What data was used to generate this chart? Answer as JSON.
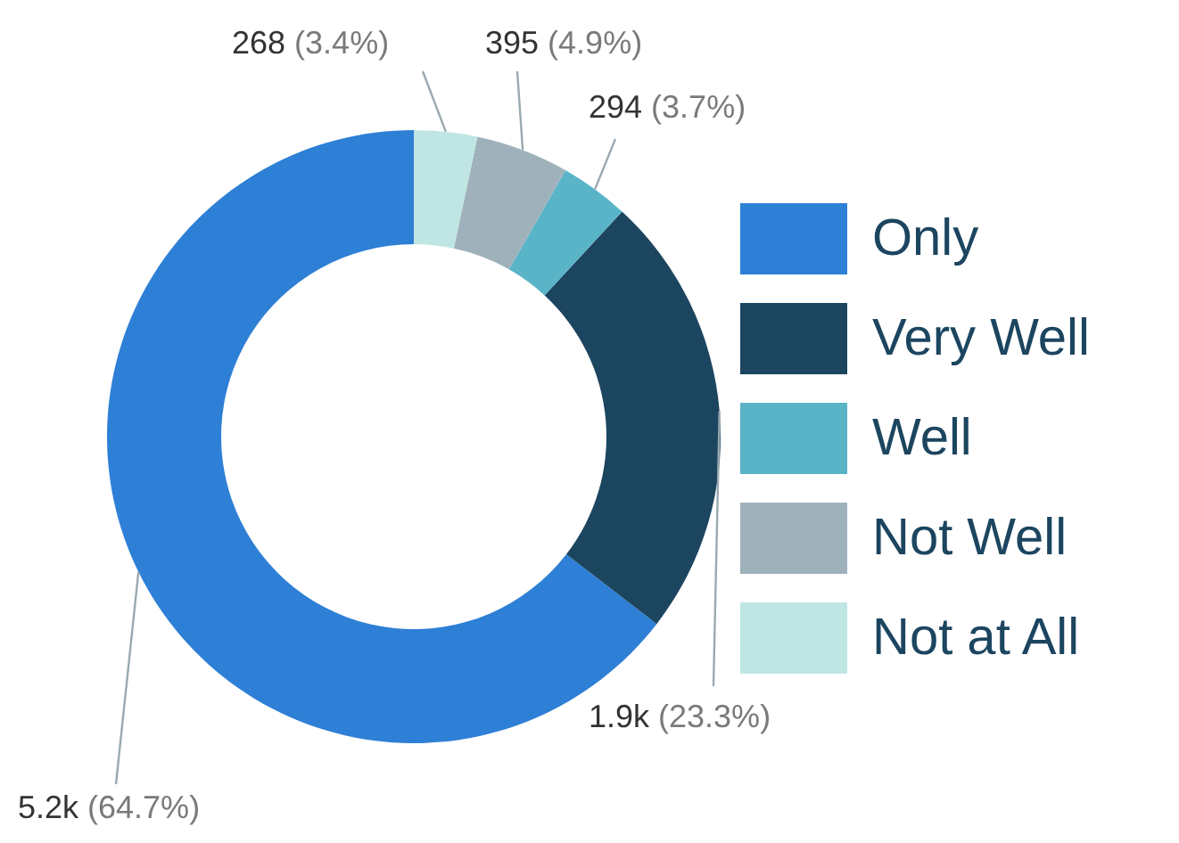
{
  "chart_data": {
    "type": "donut",
    "categories": [
      "Only",
      "Very Well",
      "Well",
      "Not Well",
      "Not at All"
    ],
    "values": [
      5200,
      1900,
      294,
      395,
      268
    ],
    "value_labels": [
      "5.2k (64.7%)",
      "1.9k (23.3%)",
      "294 (3.7%)",
      "395 (4.9%)",
      "268 (3.4%)"
    ],
    "colors": [
      "#2e7fd6",
      "#1c4560",
      "#5ab4c8",
      "#9fb2bb",
      "#bfe6e3"
    ],
    "legend": "right"
  }
}
